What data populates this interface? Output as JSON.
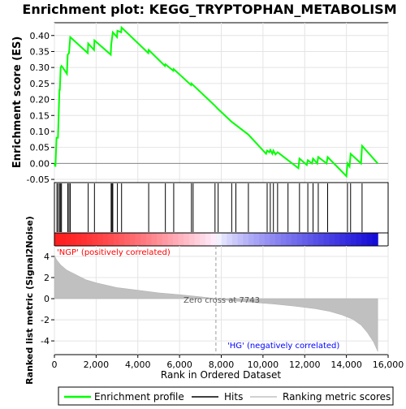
{
  "chart_data": {
    "type": "line",
    "title": "Enrichment plot: KEGG_TRYPTOPHAN_METABOLISM",
    "xlabel": "Rank in Ordered Dataset",
    "top_panel": {
      "ylabel": "Enrichment score (ES)",
      "ylim": [
        -0.06,
        0.44
      ],
      "yticks": [
        "-0.05",
        "0.00",
        "0.05",
        "0.10",
        "0.15",
        "0.20",
        "0.25",
        "0.30",
        "0.35",
        "0.40"
      ],
      "ytick_values": [
        -0.05,
        0.0,
        0.05,
        0.1,
        0.15,
        0.2,
        0.25,
        0.3,
        0.35,
        0.4
      ],
      "series": [
        {
          "name": "Enrichment profile",
          "color": "#00ff00",
          "x": [
            0,
            50,
            100,
            170,
            240,
            260,
            300,
            340,
            400,
            600,
            640,
            700,
            760,
            1600,
            1620,
            1900,
            1920,
            2700,
            2720,
            2760,
            2800,
            3000,
            3020,
            3200,
            3220,
            4500,
            4520,
            5300,
            5320,
            5700,
            5720,
            6550,
            6570,
            6650,
            7700,
            7850,
            8500,
            8700,
            9300,
            10150,
            10200,
            10300,
            10350,
            10450,
            10500,
            10600,
            10700,
            11200,
            11700,
            11750,
            12100,
            12150,
            12350,
            12400,
            12600,
            12650,
            13050,
            13100,
            14000,
            14050,
            14150,
            14200,
            14700,
            14750,
            15500
          ],
          "y": [
            0.0,
            -0.01,
            0.08,
            0.08,
            0.23,
            0.23,
            0.3,
            0.305,
            0.3,
            0.28,
            0.34,
            0.345,
            0.395,
            0.345,
            0.375,
            0.355,
            0.385,
            0.34,
            0.37,
            0.39,
            0.41,
            0.395,
            0.415,
            0.41,
            0.425,
            0.345,
            0.355,
            0.305,
            0.31,
            0.29,
            0.295,
            0.245,
            0.25,
            0.245,
            0.18,
            0.17,
            0.13,
            0.12,
            0.09,
            0.03,
            0.04,
            0.035,
            0.042,
            0.03,
            0.04,
            0.028,
            0.035,
            0.01,
            -0.015,
            0.015,
            -0.005,
            0.01,
            0.0,
            0.015,
            0.0,
            0.02,
            0.0,
            0.02,
            -0.04,
            0.0,
            -0.01,
            0.03,
            0.0,
            0.055,
            0.0
          ]
        }
      ]
    },
    "hits_panel": {
      "series_name": "Hits",
      "hit_ranks": [
        120,
        180,
        250,
        300,
        340,
        640,
        700,
        760,
        1620,
        1920,
        2720,
        2760,
        2800,
        3020,
        3220,
        4520,
        5320,
        5720,
        6570,
        6650,
        7700,
        7850,
        8500,
        8700,
        9300,
        10200,
        10350,
        10500,
        10700,
        11200,
        11750,
        12150,
        12400,
        12650,
        13100,
        14050,
        14200,
        14750
      ]
    },
    "bottom_panel": {
      "ylabel": "Ranked list metric (Signal2Noise)",
      "series_name": "Ranking metric scores",
      "ylim": [
        -5.3,
        5.0
      ],
      "yticks": [
        "-4",
        "-2",
        "0",
        "2",
        "4"
      ],
      "ytick_values": [
        -4,
        -2,
        0,
        2,
        4
      ],
      "metric_x": [
        0,
        100,
        300,
        600,
        1000,
        1500,
        2000,
        3000,
        4000,
        5000,
        6000,
        7000,
        7743,
        8500,
        9500,
        10500,
        11500,
        12500,
        13200,
        13800,
        14300,
        14700,
        15000,
        15300,
        15500
      ],
      "metric_y": [
        4.1,
        3.7,
        3.2,
        2.7,
        2.3,
        1.8,
        1.5,
        1.05,
        0.8,
        0.55,
        0.38,
        0.18,
        0.0,
        -0.2,
        -0.35,
        -0.5,
        -0.7,
        -0.95,
        -1.2,
        -1.55,
        -1.95,
        -2.5,
        -3.2,
        -4.1,
        -5.0
      ],
      "zero_cross_label": "Zero cross at 7743",
      "zero_cross_rank": 7743,
      "pos_label": "'NGP' (positively correlated)",
      "neg_label": "'HG' (negatively correlated)"
    },
    "xlim": [
      0,
      16000
    ],
    "xticks": [
      "0",
      "2,000",
      "4,000",
      "6,000",
      "8,000",
      "10,000",
      "12,000",
      "14,000",
      "16,000"
    ],
    "xtick_values": [
      0,
      2000,
      4000,
      6000,
      8000,
      10000,
      12000,
      14000,
      16000
    ],
    "n_genes": 15500,
    "legend": {
      "placement": "bottom",
      "items": [
        {
          "label": "Enrichment profile",
          "color": "#00ff00"
        },
        {
          "label": "Hits",
          "color": "#000000"
        },
        {
          "label": "Ranking metric scores",
          "color": "#c0c0c0"
        }
      ]
    },
    "colors": {
      "profile": "#00ff00",
      "metric_fill": "#c0c0c0",
      "pos_label": "#ff0000",
      "neg_label": "#0000ff",
      "grid": "#e4e4e4"
    }
  }
}
